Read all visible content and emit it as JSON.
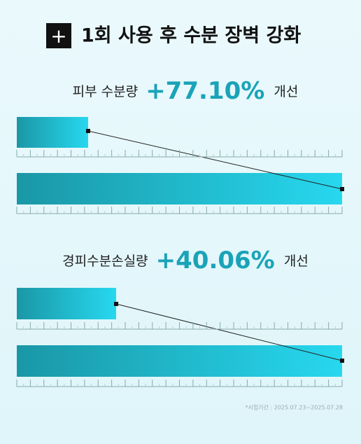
{
  "header": {
    "icon": "+",
    "title": "1회 사용 후 수분 장벽 강화"
  },
  "sections": [
    {
      "label": "피부 수분량",
      "value": "+77.10%",
      "suffix": "개선"
    },
    {
      "label": "경피수분손실량",
      "value": "+40.06%",
      "suffix": "개선"
    }
  ],
  "footnote": "*시험기간 : 2025.07.23~2025.07.28"
}
